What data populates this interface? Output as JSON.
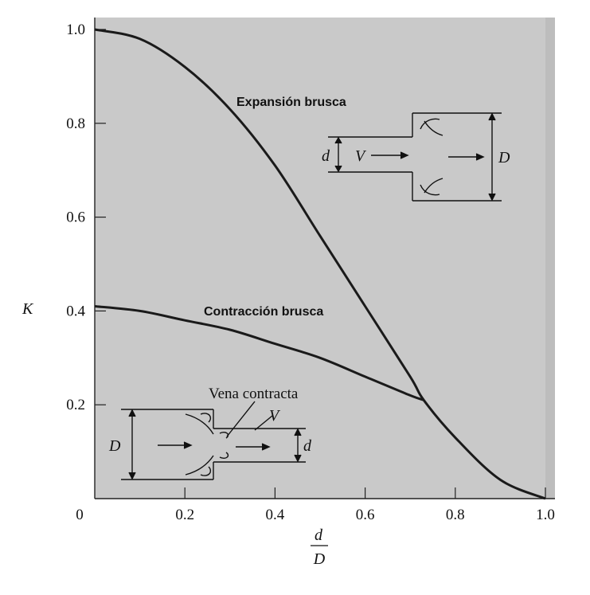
{
  "chart_data": {
    "type": "line",
    "xlabel_num": "d",
    "xlabel_den": "D",
    "ylabel": "K",
    "xlim": [
      0,
      1.0
    ],
    "ylim": [
      0,
      1.0
    ],
    "x_ticks": [
      "0",
      "0.2",
      "0.4",
      "0.6",
      "0.8",
      "1.0"
    ],
    "y_ticks": [
      "0.2",
      "0.4",
      "0.6",
      "0.8",
      "1.0"
    ],
    "grid": false,
    "background": "#c9c9c9",
    "series": [
      {
        "name": "Expansión brusca",
        "x": [
          0,
          0.1,
          0.2,
          0.3,
          0.4,
          0.5,
          0.6,
          0.7,
          0.73,
          0.8,
          0.9,
          1.0
        ],
        "y": [
          1.0,
          0.98,
          0.92,
          0.83,
          0.71,
          0.56,
          0.41,
          0.26,
          0.21,
          0.13,
          0.04,
          0.0
        ]
      },
      {
        "name": "Contracción brusca",
        "x": [
          0,
          0.1,
          0.2,
          0.3,
          0.4,
          0.5,
          0.6,
          0.7,
          0.73
        ],
        "y": [
          0.41,
          0.4,
          0.38,
          0.36,
          0.33,
          0.3,
          0.26,
          0.22,
          0.21
        ]
      }
    ]
  },
  "diagram_expansion": {
    "d": "d",
    "V": "V",
    "D": "D"
  },
  "diagram_contraction": {
    "label": "Vena contracta",
    "D": "D",
    "V": "V",
    "d": "d"
  }
}
